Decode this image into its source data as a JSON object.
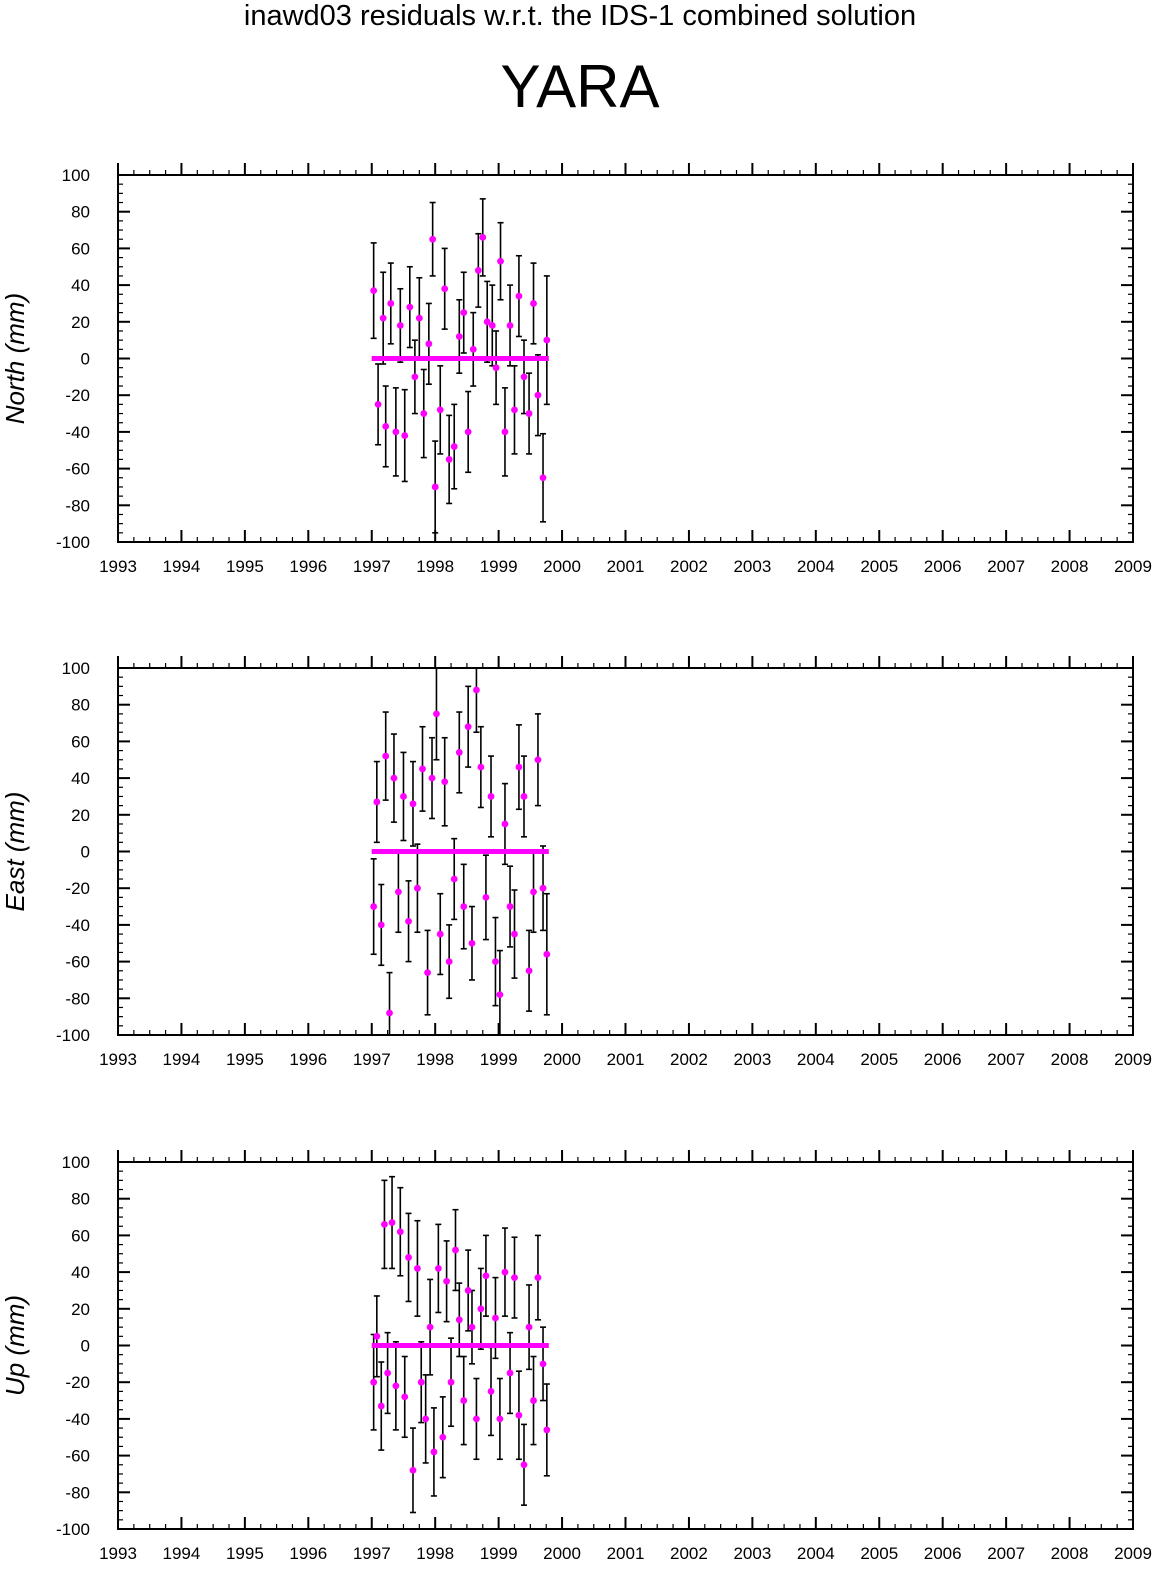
{
  "title": "inawd03 residuals w.r.t. the IDS-1 combined solution",
  "station": "YARA",
  "colors": {
    "point": "#ff00ff",
    "errorbar": "#000000",
    "axis": "#000000",
    "zero_line": "#ff00ff"
  },
  "chart_data": [
    {
      "type": "scatter",
      "ylabel": "North (mm)",
      "xlim": [
        1993,
        2009
      ],
      "ylim": [
        -100,
        100
      ],
      "x_ticks": [
        1993,
        1994,
        1995,
        1996,
        1997,
        1998,
        1999,
        2000,
        2001,
        2002,
        2003,
        2004,
        2005,
        2006,
        2007,
        2008,
        2009
      ],
      "y_ticks": [
        -100,
        -80,
        -60,
        -40,
        -20,
        0,
        20,
        40,
        60,
        80,
        100
      ],
      "grid": false,
      "zero_line": 0,
      "series": [
        {
          "x": [
            1997.03,
            1997.1,
            1997.18,
            1997.22,
            1997.3,
            1997.38,
            1997.45,
            1997.52,
            1997.6,
            1997.68,
            1997.75,
            1997.82,
            1997.9,
            1997.96,
            1998.0,
            1998.08,
            1998.15,
            1998.22,
            1998.3,
            1998.38,
            1998.45,
            1998.52,
            1998.6,
            1998.68,
            1998.75,
            1998.82,
            1998.9,
            1998.96,
            1999.03,
            1999.1,
            1999.18,
            1999.25,
            1999.32,
            1999.4,
            1999.48,
            1999.55,
            1999.62,
            1999.7,
            1999.76
          ],
          "y": [
            37,
            -25,
            22,
            -37,
            30,
            -40,
            18,
            -42,
            28,
            -10,
            22,
            -30,
            8,
            65,
            -70,
            -28,
            38,
            -55,
            -48,
            12,
            25,
            -40,
            5,
            48,
            66,
            20,
            18,
            -5,
            53,
            -40,
            18,
            -28,
            34,
            -10,
            -30,
            30,
            -20,
            -65,
            10
          ],
          "err": [
            26,
            22,
            25,
            22,
            22,
            24,
            20,
            25,
            22,
            20,
            22,
            24,
            22,
            20,
            25,
            24,
            22,
            24,
            23,
            20,
            22,
            22,
            20,
            20,
            21,
            22,
            22,
            20,
            21,
            24,
            22,
            24,
            22,
            20,
            22,
            22,
            22,
            24,
            35
          ]
        }
      ]
    },
    {
      "type": "scatter",
      "ylabel": "East (mm)",
      "xlim": [
        1993,
        2009
      ],
      "ylim": [
        -100,
        100
      ],
      "x_ticks": [
        1993,
        1994,
        1995,
        1996,
        1997,
        1998,
        1999,
        2000,
        2001,
        2002,
        2003,
        2004,
        2005,
        2006,
        2007,
        2008,
        2009
      ],
      "y_ticks": [
        -100,
        -80,
        -60,
        -40,
        -20,
        0,
        20,
        40,
        60,
        80,
        100
      ],
      "grid": false,
      "zero_line": 0,
      "series": [
        {
          "x": [
            1997.03,
            1997.08,
            1997.15,
            1997.22,
            1997.28,
            1997.35,
            1997.42,
            1997.5,
            1997.58,
            1997.65,
            1997.72,
            1997.8,
            1997.88,
            1997.95,
            1998.02,
            1998.08,
            1998.15,
            1998.22,
            1998.3,
            1998.38,
            1998.45,
            1998.52,
            1998.58,
            1998.65,
            1998.72,
            1998.8,
            1998.88,
            1998.95,
            1999.02,
            1999.1,
            1999.18,
            1999.25,
            1999.32,
            1999.4,
            1999.48,
            1999.55,
            1999.62,
            1999.7,
            1999.76
          ],
          "y": [
            -30,
            27,
            -40,
            52,
            -88,
            40,
            -22,
            30,
            -38,
            26,
            -20,
            45,
            -66,
            40,
            75,
            -45,
            38,
            -60,
            -15,
            54,
            -30,
            68,
            -50,
            88,
            46,
            -25,
            30,
            -60,
            -78,
            15,
            -30,
            -45,
            46,
            30,
            -65,
            -22,
            50,
            -20,
            -56
          ],
          "err": [
            26,
            22,
            22,
            24,
            22,
            24,
            22,
            24,
            22,
            23,
            24,
            23,
            23,
            22,
            25,
            22,
            24,
            20,
            22,
            22,
            23,
            22,
            20,
            23,
            22,
            23,
            22,
            24,
            24,
            22,
            22,
            24,
            23,
            22,
            22,
            22,
            25,
            23,
            33
          ]
        }
      ]
    },
    {
      "type": "scatter",
      "ylabel": "Up (mm)",
      "xlim": [
        1993,
        2009
      ],
      "ylim": [
        -100,
        100
      ],
      "x_ticks": [
        1993,
        1994,
        1995,
        1996,
        1997,
        1998,
        1999,
        2000,
        2001,
        2002,
        2003,
        2004,
        2005,
        2006,
        2007,
        2008,
        2009
      ],
      "y_ticks": [
        -100,
        -80,
        -60,
        -40,
        -20,
        0,
        20,
        40,
        60,
        80,
        100
      ],
      "grid": false,
      "zero_line": 0,
      "series": [
        {
          "x": [
            1997.03,
            1997.08,
            1997.15,
            1997.2,
            1997.25,
            1997.32,
            1997.38,
            1997.45,
            1997.52,
            1997.58,
            1997.65,
            1997.72,
            1997.78,
            1997.85,
            1997.92,
            1997.98,
            1998.05,
            1998.12,
            1998.18,
            1998.25,
            1998.32,
            1998.38,
            1998.45,
            1998.52,
            1998.58,
            1998.65,
            1998.72,
            1998.8,
            1998.88,
            1998.95,
            1999.02,
            1999.1,
            1999.18,
            1999.25,
            1999.32,
            1999.4,
            1999.48,
            1999.55,
            1999.62,
            1999.7,
            1999.76
          ],
          "y": [
            -20,
            5,
            -33,
            66,
            -15,
            67,
            -22,
            62,
            -28,
            48,
            -68,
            42,
            -20,
            -40,
            10,
            -58,
            42,
            -50,
            35,
            -20,
            52,
            14,
            -30,
            30,
            10,
            -40,
            20,
            38,
            -25,
            15,
            -40,
            40,
            -15,
            37,
            -38,
            -65,
            10,
            -30,
            37,
            -10,
            -46
          ],
          "err": [
            26,
            22,
            24,
            24,
            22,
            25,
            24,
            24,
            22,
            24,
            23,
            26,
            22,
            24,
            26,
            24,
            24,
            22,
            22,
            24,
            22,
            20,
            24,
            22,
            20,
            22,
            22,
            22,
            24,
            22,
            22,
            24,
            22,
            22,
            24,
            22,
            23,
            24,
            23,
            20,
            25
          ]
        }
      ]
    }
  ]
}
